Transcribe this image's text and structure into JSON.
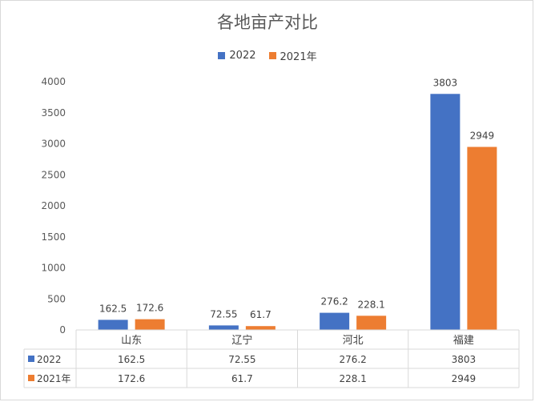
{
  "chart_data": {
    "type": "bar",
    "title": "各地亩产对比",
    "categories": [
      "山东",
      "辽宁",
      "河北",
      "福建"
    ],
    "series": [
      {
        "name": "2022",
        "color": "#4472c4",
        "values": [
          162.5,
          72.55,
          276.2,
          3803
        ],
        "labels": [
          "162.5",
          "72.55",
          "276.2",
          "3803"
        ]
      },
      {
        "name": "2021年",
        "color": "#ed7d31",
        "values": [
          172.6,
          61.7,
          228.1,
          2949
        ],
        "labels": [
          "172.6",
          "61.7",
          "228.1",
          "2949"
        ]
      }
    ],
    "ylim": [
      0,
      4000
    ],
    "yticks": [
      "0",
      "500",
      "1000",
      "1500",
      "2000",
      "2500",
      "3000",
      "3500",
      "4000"
    ],
    "grid": false,
    "legend_position": "top",
    "data_table": true
  }
}
